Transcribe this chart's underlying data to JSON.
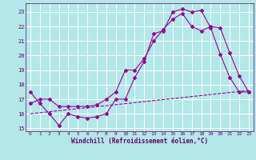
{
  "xlabel": "Windchill (Refroidissement éolien,°C)",
  "bg_color": "#b2e8e8",
  "grid_color": "#ffffff",
  "line_color": "#990099",
  "xlim": [
    -0.5,
    23.5
  ],
  "ylim": [
    14.8,
    23.6
  ],
  "yticks": [
    15,
    16,
    17,
    18,
    19,
    20,
    21,
    22,
    23
  ],
  "xticks": [
    0,
    1,
    2,
    3,
    4,
    5,
    6,
    7,
    8,
    9,
    10,
    11,
    12,
    13,
    14,
    15,
    16,
    17,
    18,
    19,
    20,
    21,
    22,
    23
  ],
  "line1_x": [
    0,
    1,
    2,
    3,
    4,
    5,
    6,
    7,
    8,
    9,
    10,
    11,
    12,
    13,
    14,
    15,
    16,
    17,
    18,
    19,
    20,
    21,
    22,
    23
  ],
  "line1_y": [
    17.5,
    16.7,
    16.0,
    15.2,
    16.0,
    15.8,
    15.7,
    15.8,
    16.0,
    17.0,
    17.0,
    18.5,
    19.6,
    21.5,
    21.7,
    23.0,
    23.2,
    23.0,
    23.1,
    21.9,
    20.1,
    18.5,
    17.5,
    17.5
  ],
  "line2_x": [
    0,
    1,
    2,
    3,
    4,
    5,
    6,
    7,
    8,
    9,
    10,
    11,
    12,
    13,
    14,
    15,
    16,
    17,
    18,
    19,
    20,
    21,
    22,
    23
  ],
  "line2_y": [
    16.7,
    17.0,
    17.0,
    16.5,
    16.5,
    16.5,
    16.5,
    16.6,
    17.0,
    17.5,
    19.0,
    19.0,
    19.8,
    21.0,
    21.8,
    22.5,
    22.9,
    22.0,
    21.7,
    22.0,
    21.9,
    20.2,
    18.6,
    17.5
  ],
  "line3_x": [
    0,
    23
  ],
  "line3_y": [
    16.0,
    17.6
  ],
  "tick_fontsize": 4.5,
  "xlabel_fontsize": 5.5
}
